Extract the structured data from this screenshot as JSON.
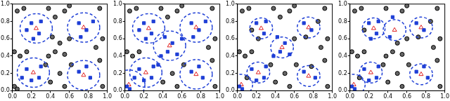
{
  "chart_data": [
    {
      "type": "scatter",
      "xlim": [
        0,
        1
      ],
      "ylim": [
        0,
        1
      ],
      "xticks": [
        {
          "value": 0,
          "label": "0.0"
        },
        {
          "value": 0.2,
          "label": "0.2"
        },
        {
          "value": 0.4,
          "label": "0.4"
        },
        {
          "value": 0.6,
          "label": "0.6"
        },
        {
          "value": 0.8,
          "label": "0.8"
        },
        {
          "value": 1,
          "label": "1.0"
        }
      ],
      "yticks": [
        {
          "value": 0,
          "label": "0.0"
        },
        {
          "value": 0.2,
          "label": "0.2"
        },
        {
          "value": 0.4,
          "label": "0.4"
        },
        {
          "value": 0.6,
          "label": "0.6"
        },
        {
          "value": 0.8,
          "label": "0.8"
        },
        {
          "value": 1,
          "label": "1.0"
        }
      ],
      "series": [
        {
          "marker": "circle",
          "color": "#000000",
          "points": [
            [
              0.05,
              0.92
            ],
            [
              0.12,
              0.95
            ],
            [
              0.38,
              0.95
            ],
            [
              0.45,
              0.85
            ],
            [
              0.55,
              0.92
            ],
            [
              0.6,
              0.98
            ],
            [
              0.92,
              0.95
            ],
            [
              0.95,
              0.6
            ],
            [
              0.42,
              0.62
            ],
            [
              0.5,
              0.55
            ],
            [
              0.45,
              0.45
            ],
            [
              0.55,
              0.42
            ],
            [
              0.38,
              0.4
            ],
            [
              0.6,
              0.6
            ],
            [
              0.02,
              0.45
            ],
            [
              0.08,
              0.4
            ],
            [
              0.02,
              0.05
            ],
            [
              0.05,
              0.02
            ],
            [
              0.4,
              0.1
            ],
            [
              0.5,
              0.2
            ],
            [
              0.55,
              0.05
            ],
            [
              0.92,
              0.35
            ],
            [
              0.95,
              0.05
            ],
            [
              0.62,
              0.3
            ],
            [
              0.35,
              0.3
            ],
            [
              0.88,
              0.5
            ],
            [
              0.15,
              0.45
            ]
          ]
        },
        {
          "marker": "square",
          "color": "#1f3fd6",
          "points": [
            [
              0.2,
              0.78
            ],
            [
              0.28,
              0.66
            ],
            [
              0.22,
              0.6
            ],
            [
              0.3,
              0.8
            ],
            [
              0.15,
              0.7
            ],
            [
              0.7,
              0.78
            ],
            [
              0.78,
              0.7
            ],
            [
              0.72,
              0.62
            ],
            [
              0.85,
              0.8
            ],
            [
              0.15,
              0.25
            ],
            [
              0.3,
              0.28
            ],
            [
              0.2,
              0.12
            ],
            [
              0.1,
              0.15
            ],
            [
              0.28,
              0.15
            ],
            [
              0.7,
              0.22
            ],
            [
              0.82,
              0.15
            ],
            [
              0.78,
              0.28
            ]
          ]
        },
        {
          "marker": "triangle",
          "color": "#e02020",
          "points": [
            [
              0.25,
              0.72
            ],
            [
              0.75,
              0.73
            ],
            [
              0.22,
              0.21
            ],
            [
              0.75,
              0.18
            ]
          ],
          "radius": 0.17,
          "line_style": "dashed",
          "circle_color": "#1f3fd6"
        }
      ]
    },
    {
      "type": "scatter",
      "xlim": [
        0,
        1
      ],
      "ylim": [
        0,
        1
      ],
      "xticks": [
        {
          "value": 0,
          "label": "0.0"
        },
        {
          "value": 0.2,
          "label": "0.2"
        },
        {
          "value": 0.4,
          "label": "0.4"
        },
        {
          "value": 0.6,
          "label": "0.6"
        },
        {
          "value": 0.8,
          "label": "0.8"
        },
        {
          "value": 1,
          "label": "1.0"
        }
      ],
      "yticks": [
        {
          "value": 0,
          "label": "0.0"
        },
        {
          "value": 0.2,
          "label": "0.2"
        },
        {
          "value": 0.4,
          "label": "0.4"
        },
        {
          "value": 0.6,
          "label": "0.6"
        },
        {
          "value": 0.8,
          "label": "0.8"
        },
        {
          "value": 1,
          "label": "1.0"
        }
      ],
      "series": [
        {
          "marker": "circle",
          "color": "#000000",
          "points": [
            [
              0.05,
              0.92
            ],
            [
              0.12,
              0.95
            ],
            [
              0.38,
              0.95
            ],
            [
              0.45,
              0.85
            ],
            [
              0.55,
              0.92
            ],
            [
              0.6,
              0.98
            ],
            [
              0.92,
              0.95
            ],
            [
              0.95,
              0.6
            ],
            [
              0.02,
              0.45
            ],
            [
              0.08,
              0.4
            ],
            [
              0.4,
              0.1
            ],
            [
              0.5,
              0.2
            ],
            [
              0.55,
              0.05
            ],
            [
              0.92,
              0.35
            ],
            [
              0.95,
              0.05
            ],
            [
              0.62,
              0.3
            ],
            [
              0.88,
              0.5
            ],
            [
              0.15,
              0.45
            ]
          ]
        },
        {
          "marker": "square",
          "color": "#1f3fd6",
          "points": [
            [
              0.2,
              0.78
            ],
            [
              0.28,
              0.66
            ],
            [
              0.22,
              0.6
            ],
            [
              0.3,
              0.8
            ],
            [
              0.15,
              0.7
            ],
            [
              0.7,
              0.78
            ],
            [
              0.78,
              0.7
            ],
            [
              0.72,
              0.62
            ],
            [
              0.85,
              0.8
            ],
            [
              0.15,
              0.25
            ],
            [
              0.3,
              0.28
            ],
            [
              0.2,
              0.12
            ],
            [
              0.1,
              0.15
            ],
            [
              0.28,
              0.15
            ],
            [
              0.7,
              0.22
            ],
            [
              0.82,
              0.15
            ],
            [
              0.78,
              0.28
            ],
            [
              0.42,
              0.62
            ],
            [
              0.5,
              0.55
            ],
            [
              0.45,
              0.45
            ],
            [
              0.55,
              0.42
            ],
            [
              0.38,
              0.4
            ],
            [
              0.6,
              0.6
            ],
            [
              0.35,
              0.3
            ],
            [
              0.02,
              0.05
            ],
            [
              0.05,
              0.02
            ]
          ]
        },
        {
          "marker": "triangle",
          "color": "#e02020",
          "points": [
            [
              0.25,
              0.72
            ],
            [
              0.75,
              0.73
            ],
            [
              0.47,
              0.52
            ],
            [
              0.22,
              0.21
            ],
            [
              0.04,
              0.07
            ],
            [
              0.75,
              0.19
            ]
          ],
          "radius": 0.17,
          "line_style": "dashed",
          "circle_color": "#1f3fd6"
        }
      ]
    },
    {
      "type": "scatter",
      "xlim": [
        0,
        1
      ],
      "ylim": [
        0,
        1
      ],
      "xticks": [
        {
          "value": 0,
          "label": "0.0"
        },
        {
          "value": 0.2,
          "label": "0.2"
        },
        {
          "value": 0.4,
          "label": "0.4"
        },
        {
          "value": 0.6,
          "label": "0.6"
        },
        {
          "value": 0.8,
          "label": "0.8"
        },
        {
          "value": 1,
          "label": "1.0"
        }
      ],
      "yticks": [
        {
          "value": 0,
          "label": "0.0"
        },
        {
          "value": 0.2,
          "label": "0.2"
        },
        {
          "value": 0.4,
          "label": "0.4"
        },
        {
          "value": 0.6,
          "label": "0.6"
        },
        {
          "value": 0.8,
          "label": "0.8"
        },
        {
          "value": 1,
          "label": "1.0"
        }
      ],
      "series": [
        {
          "marker": "circle",
          "color": "#000000",
          "points": [
            [
              0.05,
              0.92
            ],
            [
              0.12,
              0.95
            ],
            [
              0.38,
              0.95
            ],
            [
              0.45,
              0.85
            ],
            [
              0.55,
              0.92
            ],
            [
              0.6,
              0.98
            ],
            [
              0.92,
              0.95
            ],
            [
              0.95,
              0.6
            ],
            [
              0.6,
              0.6
            ],
            [
              0.02,
              0.45
            ],
            [
              0.08,
              0.4
            ],
            [
              0.4,
              0.1
            ],
            [
              0.5,
              0.2
            ],
            [
              0.55,
              0.05
            ],
            [
              0.92,
              0.35
            ],
            [
              0.95,
              0.05
            ],
            [
              0.62,
              0.3
            ],
            [
              0.35,
              0.3
            ],
            [
              0.88,
              0.5
            ],
            [
              0.15,
              0.45
            ],
            [
              0.15,
              0.7
            ],
            [
              0.85,
              0.8
            ],
            [
              0.72,
              0.62
            ],
            [
              0.1,
              0.15
            ],
            [
              0.78,
              0.28
            ],
            [
              0.22,
              0.6
            ]
          ]
        },
        {
          "marker": "square",
          "color": "#1f3fd6",
          "points": [
            [
              0.2,
              0.78
            ],
            [
              0.28,
              0.66
            ],
            [
              0.3,
              0.8
            ],
            [
              0.7,
              0.78
            ],
            [
              0.78,
              0.7
            ],
            [
              0.15,
              0.25
            ],
            [
              0.3,
              0.28
            ],
            [
              0.2,
              0.12
            ],
            [
              0.28,
              0.15
            ],
            [
              0.7,
              0.22
            ],
            [
              0.82,
              0.15
            ],
            [
              0.42,
              0.62
            ],
            [
              0.5,
              0.55
            ],
            [
              0.45,
              0.45
            ],
            [
              0.55,
              0.42
            ],
            [
              0.38,
              0.4
            ],
            [
              0.02,
              0.05
            ],
            [
              0.05,
              0.02
            ]
          ]
        },
        {
          "marker": "triangle",
          "color": "#e02020",
          "points": [
            [
              0.25,
              0.72
            ],
            [
              0.75,
              0.73
            ],
            [
              0.47,
              0.5
            ],
            [
              0.22,
              0.21
            ],
            [
              0.04,
              0.07
            ],
            [
              0.75,
              0.17
            ]
          ],
          "radius": 0.12,
          "line_style": "dashed",
          "circle_color": "#1f3fd6"
        }
      ]
    },
    {
      "type": "scatter",
      "xlim": [
        0,
        1
      ],
      "ylim": [
        0,
        1
      ],
      "xticks": [
        {
          "value": 0,
          "label": "0.0"
        },
        {
          "value": 0.2,
          "label": "0.2"
        },
        {
          "value": 0.4,
          "label": "0.4"
        },
        {
          "value": 0.6,
          "label": "0.6"
        },
        {
          "value": 0.8,
          "label": "0.8"
        },
        {
          "value": 1,
          "label": "1.0"
        }
      ],
      "yticks": [
        {
          "value": 0,
          "label": "0.0"
        },
        {
          "value": 0.2,
          "label": "0.2"
        },
        {
          "value": 0.4,
          "label": "0.4"
        },
        {
          "value": 0.6,
          "label": "0.6"
        },
        {
          "value": 0.8,
          "label": "0.8"
        },
        {
          "value": 1,
          "label": "1.0"
        }
      ],
      "series": [
        {
          "marker": "circle",
          "color": "#000000",
          "points": [
            [
              0.05,
              0.92
            ],
            [
              0.12,
              0.95
            ],
            [
              0.38,
              0.95
            ],
            [
              0.55,
              0.92
            ],
            [
              0.6,
              0.98
            ],
            [
              0.92,
              0.95
            ],
            [
              0.95,
              0.6
            ],
            [
              0.5,
              0.55
            ],
            [
              0.45,
              0.45
            ],
            [
              0.55,
              0.42
            ],
            [
              0.38,
              0.4
            ],
            [
              0.6,
              0.6
            ],
            [
              0.02,
              0.45
            ],
            [
              0.08,
              0.4
            ],
            [
              0.4,
              0.1
            ],
            [
              0.5,
              0.2
            ],
            [
              0.55,
              0.05
            ],
            [
              0.92,
              0.35
            ],
            [
              0.95,
              0.05
            ],
            [
              0.62,
              0.3
            ],
            [
              0.35,
              0.3
            ],
            [
              0.88,
              0.5
            ],
            [
              0.15,
              0.45
            ],
            [
              0.15,
              0.7
            ],
            [
              0.85,
              0.8
            ],
            [
              0.72,
              0.62
            ],
            [
              0.1,
              0.15
            ]
          ]
        },
        {
          "marker": "square",
          "color": "#1f3fd6",
          "points": [
            [
              0.2,
              0.78
            ],
            [
              0.28,
              0.66
            ],
            [
              0.22,
              0.6
            ],
            [
              0.3,
              0.8
            ],
            [
              0.7,
              0.78
            ],
            [
              0.78,
              0.7
            ],
            [
              0.45,
              0.85
            ],
            [
              0.42,
              0.62
            ],
            [
              0.15,
              0.25
            ],
            [
              0.3,
              0.28
            ],
            [
              0.2,
              0.12
            ],
            [
              0.28,
              0.15
            ],
            [
              0.7,
              0.22
            ],
            [
              0.82,
              0.15
            ],
            [
              0.78,
              0.28
            ],
            [
              0.02,
              0.05
            ],
            [
              0.05,
              0.02
            ]
          ]
        },
        {
          "marker": "triangle",
          "color": "#e02020",
          "points": [
            [
              0.25,
              0.72
            ],
            [
              0.75,
              0.73
            ],
            [
              0.47,
              0.7
            ],
            [
              0.22,
              0.21
            ],
            [
              0.04,
              0.07
            ],
            [
              0.75,
              0.19
            ]
          ],
          "radius": 0.12,
          "line_style": "dashed",
          "circle_color": "#1f3fd6"
        }
      ]
    }
  ]
}
